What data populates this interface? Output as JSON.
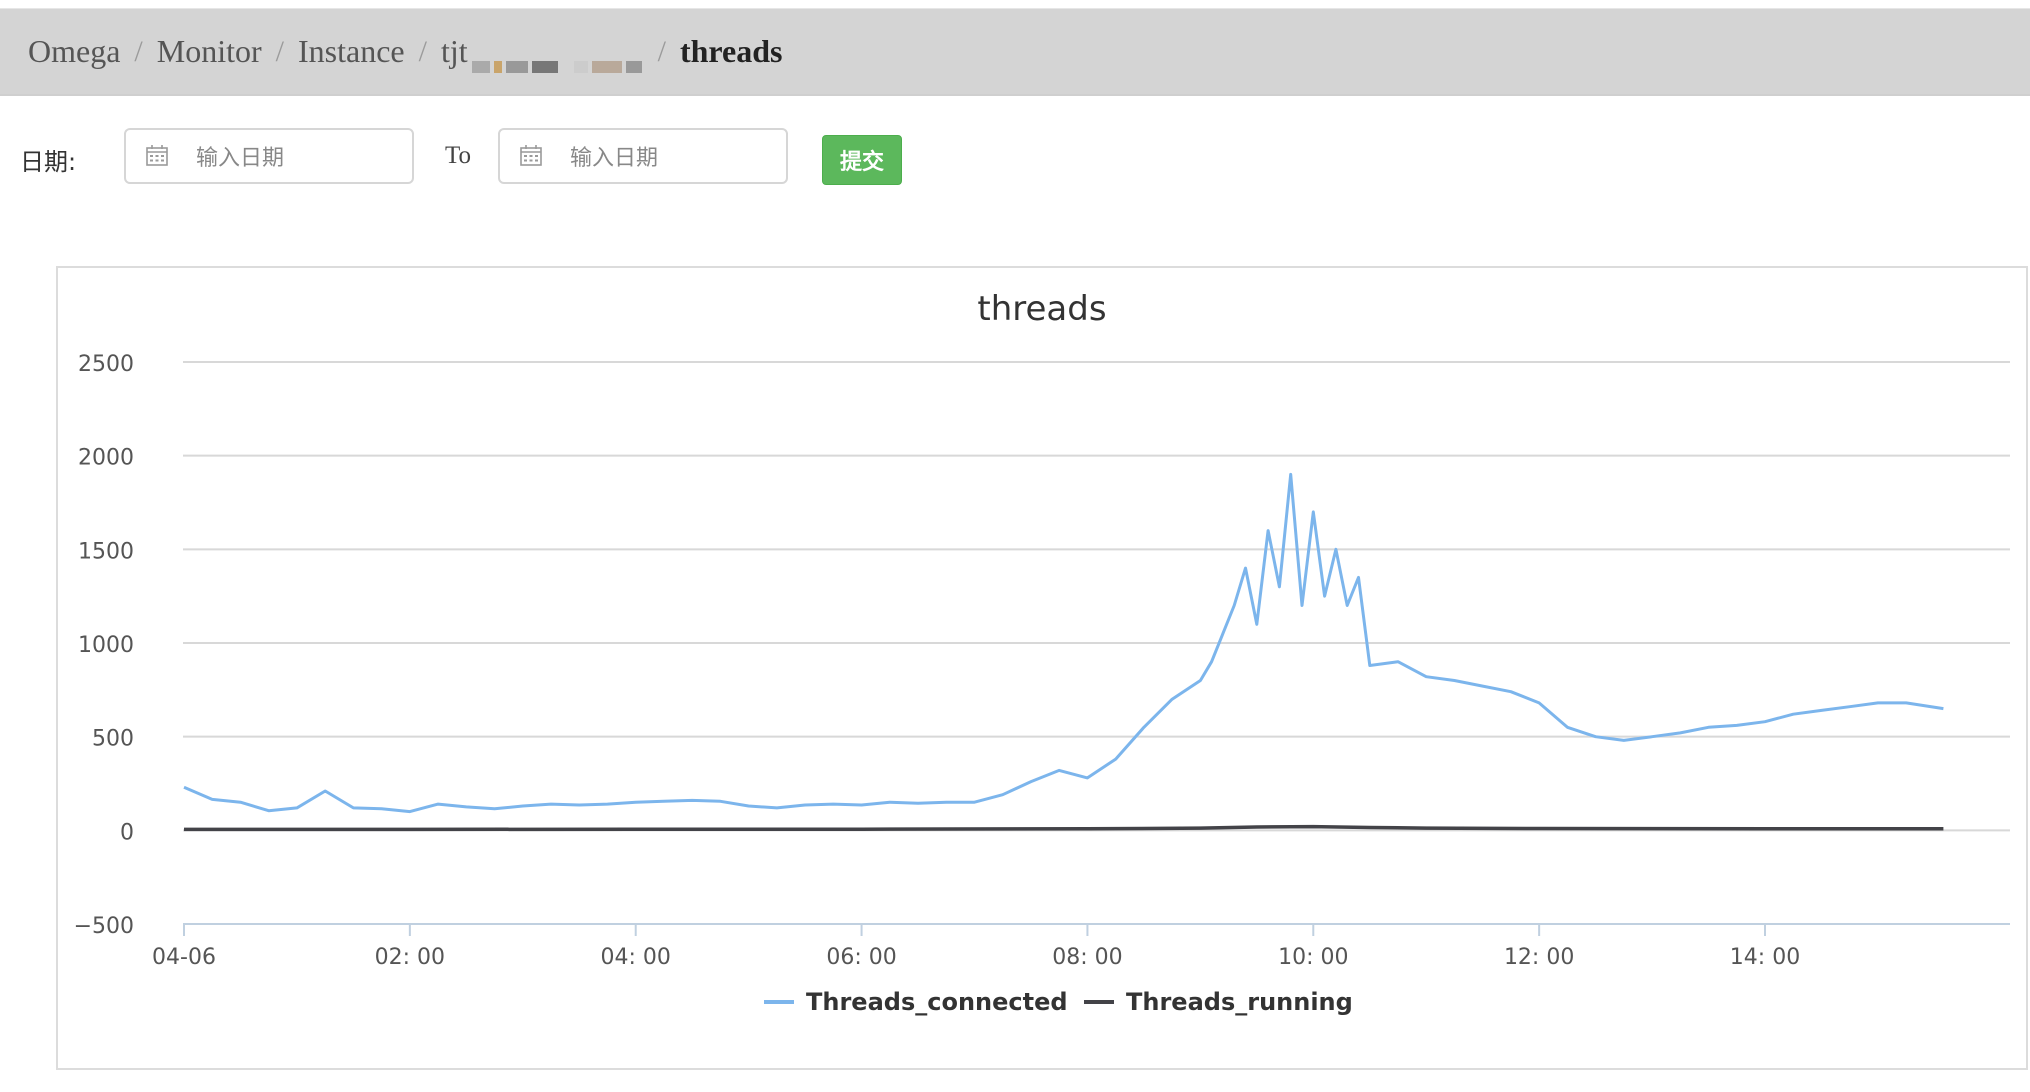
{
  "breadcrumb": {
    "items": [
      "Omega",
      "Monitor",
      "Instance",
      "tjt"
    ],
    "separator": "/",
    "current": "threads"
  },
  "filter": {
    "date_label": "日期:",
    "from_placeholder": "输入日期",
    "to_label": "To",
    "to_placeholder": "输入日期",
    "submit_label": "提交"
  },
  "chart_data": {
    "type": "line",
    "title": "threads",
    "xlabel": "",
    "ylabel": "",
    "ylim": [
      -500,
      2500
    ],
    "yticks": [
      2500,
      2000,
      1500,
      1000,
      500,
      0,
      -500
    ],
    "xtick_labels": [
      "04-06",
      "02: 00",
      "04: 00",
      "06: 00",
      "08: 00",
      "10: 00",
      "12: 00",
      "14: 00"
    ],
    "xtick_hours": [
      0,
      2,
      4,
      6,
      8,
      10,
      12,
      14
    ],
    "xlim_hours": [
      0,
      15.58
    ],
    "grid": true,
    "legend_position": "bottom",
    "colors": {
      "Threads_connected": "#7cb5ec",
      "Threads_running": "#434348"
    },
    "series": [
      {
        "name": "Threads_connected",
        "x": [
          0.0,
          0.25,
          0.5,
          0.75,
          1.0,
          1.25,
          1.5,
          1.75,
          2.0,
          2.25,
          2.5,
          2.75,
          3.0,
          3.25,
          3.5,
          3.75,
          4.0,
          4.25,
          4.5,
          4.75,
          5.0,
          5.25,
          5.5,
          5.75,
          6.0,
          6.25,
          6.5,
          6.75,
          7.0,
          7.25,
          7.5,
          7.75,
          8.0,
          8.25,
          8.5,
          8.75,
          9.0,
          9.1,
          9.2,
          9.3,
          9.4,
          9.5,
          9.6,
          9.7,
          9.8,
          9.9,
          10.0,
          10.1,
          10.2,
          10.3,
          10.4,
          10.5,
          10.75,
          11.0,
          11.25,
          11.5,
          11.75,
          12.0,
          12.25,
          12.5,
          12.75,
          13.0,
          13.25,
          13.5,
          13.75,
          14.0,
          14.25,
          14.5,
          14.75,
          15.0,
          15.25,
          15.58
        ],
        "values": [
          230,
          165,
          150,
          105,
          120,
          210,
          120,
          115,
          100,
          140,
          125,
          115,
          130,
          140,
          135,
          140,
          150,
          155,
          160,
          155,
          130,
          120,
          135,
          140,
          135,
          150,
          145,
          150,
          150,
          190,
          260,
          320,
          280,
          380,
          550,
          700,
          800,
          900,
          1050,
          1200,
          1400,
          1100,
          1600,
          1300,
          1900,
          1200,
          1700,
          1250,
          1500,
          1200,
          1350,
          880,
          900,
          820,
          800,
          770,
          740,
          680,
          550,
          500,
          480,
          500,
          520,
          550,
          560,
          580,
          620,
          640,
          660,
          680,
          680,
          650
        ]
      },
      {
        "name": "Threads_running",
        "x": [
          0.0,
          2.0,
          4.0,
          6.0,
          8.0,
          9.0,
          9.5,
          10.0,
          10.5,
          11.0,
          12.0,
          14.0,
          15.58
        ],
        "values": [
          5,
          5,
          6,
          6,
          8,
          12,
          18,
          20,
          15,
          12,
          10,
          8,
          8
        ]
      }
    ]
  }
}
